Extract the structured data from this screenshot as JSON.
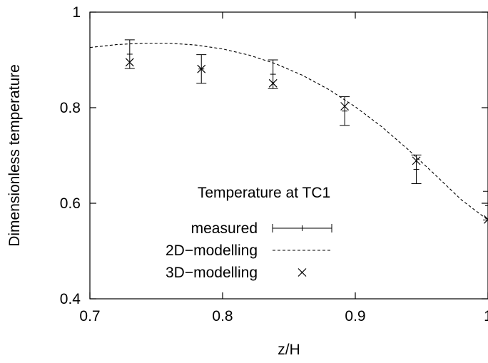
{
  "chart_data": {
    "type": "scatter",
    "xlabel": "z/H",
    "ylabel": "Dimensionless temperature",
    "xlim": [
      0.7,
      1.0
    ],
    "ylim": [
      0.4,
      1.0
    ],
    "xticks": [
      0.7,
      0.8,
      0.9,
      1.0
    ],
    "xtick_labels": [
      "0.7",
      "0.8",
      "0.9",
      "1"
    ],
    "yticks": [
      0.4,
      0.6,
      0.8,
      1.0
    ],
    "ytick_labels": [
      "0.4",
      "0.6",
      "0.8",
      "1"
    ],
    "legend_title": "Temperature at TC1",
    "legend_position": "bottom-center",
    "series": [
      {
        "name": "measured",
        "style": "errorbar",
        "x": [
          0.73,
          0.784,
          0.838,
          0.892,
          0.946,
          1.0
        ],
        "y": [
          0.912,
          0.881,
          0.87,
          0.793,
          0.671,
          0.595
        ],
        "err": [
          0.03,
          0.03,
          0.03,
          0.03,
          0.03,
          0.03
        ]
      },
      {
        "name": "2D−modelling",
        "style": "dashed-line",
        "x": [
          0.7,
          0.72,
          0.74,
          0.76,
          0.78,
          0.8,
          0.82,
          0.84,
          0.86,
          0.88,
          0.9,
          0.92,
          0.94,
          0.96,
          0.98,
          1.0
        ],
        "y": [
          0.926,
          0.932,
          0.935,
          0.935,
          0.931,
          0.923,
          0.91,
          0.892,
          0.868,
          0.838,
          0.802,
          0.76,
          0.712,
          0.66,
          0.607,
          0.565
        ]
      },
      {
        "name": "3D−modelling",
        "style": "cross",
        "x": [
          0.73,
          0.784,
          0.838,
          0.892,
          0.946,
          1.0
        ],
        "y": [
          0.895,
          0.881,
          0.851,
          0.803,
          0.689,
          0.566
        ]
      }
    ]
  }
}
